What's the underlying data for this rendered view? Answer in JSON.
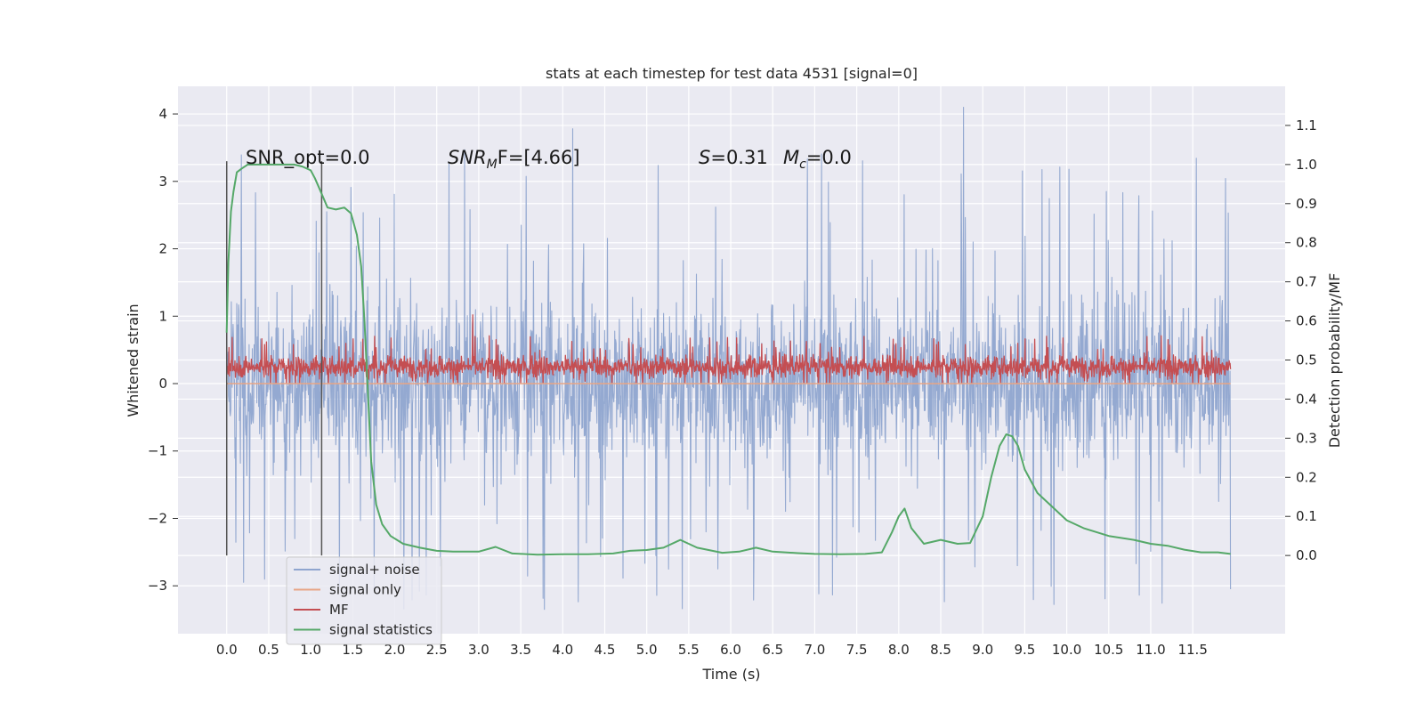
{
  "chart_data": {
    "type": "line",
    "title": "stats at each timestep for test data 4531 [signal=0]",
    "xlabel": "Time (s)",
    "ylabel": "Whitened strain",
    "y2label": "Detection probability/MF",
    "xlim": [
      -0.58,
      12.6
    ],
    "ylim": [
      -3.71,
      4.41
    ],
    "y2lim": [
      -0.2,
      1.2
    ],
    "x_ticks": [
      0.0,
      0.5,
      1.0,
      1.5,
      2.0,
      2.5,
      3.0,
      3.5,
      4.0,
      4.5,
      5.0,
      5.5,
      6.0,
      6.5,
      7.0,
      7.5,
      8.0,
      8.5,
      9.0,
      9.5,
      10.0,
      10.5,
      11.0,
      11.5
    ],
    "x_tick_labels": [
      "0.0",
      "0.5",
      "1.0",
      "1.5",
      "2.0",
      "2.5",
      "3.0",
      "3.5",
      "4.0",
      "4.5",
      "5.0",
      "5.5",
      "6.0",
      "6.5",
      "7.0",
      "7.5",
      "8.0",
      "8.5",
      "9.0",
      "9.5",
      "10.0",
      "10.5",
      "11.0",
      "11.5"
    ],
    "y_ticks": [
      4,
      3,
      2,
      1,
      0,
      -1,
      -2,
      -3
    ],
    "y_tick_labels": [
      "4",
      "3",
      "2",
      "1",
      "0",
      "−1",
      "−2",
      "−3"
    ],
    "y2_ticks": [
      1.1,
      1.0,
      0.9,
      0.8,
      0.7,
      0.6,
      0.5,
      0.4,
      0.3,
      0.2,
      0.1,
      0.0
    ],
    "y2_tick_labels": [
      "1.1",
      "1.0",
      "0.9",
      "0.8",
      "0.7",
      "0.6",
      "0.5",
      "0.4",
      "0.3",
      "0.2",
      "0.1",
      "0.0"
    ],
    "grid": true,
    "annotations": {
      "snr_opt": "SNR_opt=0.0",
      "snr_mf_main": "SNR",
      "snr_mf_sub": "M",
      "snr_mf_rest": "F=[4.66]",
      "s_var": "S",
      "s_rest": "=0.31",
      "mc_var": "M",
      "mc_sub": "c",
      "mc_rest": "=0.0"
    },
    "vlines": [
      {
        "x": 0.0,
        "y_range": [
          -2.55,
          3.3
        ]
      },
      {
        "x": 1.13,
        "y_range": [
          -2.55,
          3.3
        ]
      }
    ],
    "series": [
      {
        "name": "signal+ noise",
        "color": "#8fa5cf",
        "axis": "left",
        "style": "noise",
        "x_range": [
          0.0,
          11.95
        ],
        "envelope_typical": [
          -1.45,
          1.5
        ],
        "envelope_extreme": [
          -3.35,
          4.1
        ],
        "spikes": [
          [
            8.77,
            4.1
          ],
          [
            4.12,
            3.78
          ],
          [
            7.05,
            -3.12
          ],
          [
            3.78,
            -3.35
          ],
          [
            11.95,
            -3.05
          ],
          [
            0.45,
            -2.9
          ],
          [
            5.85,
            -2.75
          ],
          [
            2.83,
            3.47
          ]
        ]
      },
      {
        "name": "signal only",
        "color": "#e8a586",
        "axis": "left",
        "x": [
          0.0,
          11.95
        ],
        "y": [
          0.0,
          0.0
        ]
      },
      {
        "name": "MF",
        "color": "#c44e52",
        "axis": "left",
        "style": "noise",
        "x_range": [
          0.0,
          11.95
        ],
        "envelope_typical": [
          0.05,
          0.45
        ],
        "envelope_extreme": [
          0.0,
          1.02
        ],
        "spikes": [
          [
            2.93,
            1.02
          ]
        ]
      },
      {
        "name": "signal statistics",
        "color": "#55a868",
        "axis": "right",
        "x": [
          0.0,
          0.02,
          0.05,
          0.08,
          0.12,
          0.18,
          0.25,
          0.4,
          0.6,
          0.8,
          0.9,
          1.0,
          1.05,
          1.1,
          1.2,
          1.3,
          1.4,
          1.48,
          1.55,
          1.6,
          1.64,
          1.68,
          1.72,
          1.78,
          1.85,
          1.95,
          2.1,
          2.3,
          2.5,
          2.7,
          3.0,
          3.2,
          3.4,
          3.7,
          4.0,
          4.3,
          4.6,
          4.8,
          5.0,
          5.2,
          5.4,
          5.6,
          5.9,
          6.1,
          6.3,
          6.5,
          6.8,
          7.0,
          7.3,
          7.6,
          7.8,
          7.92,
          8.0,
          8.07,
          8.15,
          8.3,
          8.5,
          8.7,
          8.85,
          9.0,
          9.1,
          9.2,
          9.28,
          9.35,
          9.42,
          9.5,
          9.65,
          9.85,
          10.0,
          10.2,
          10.5,
          10.8,
          11.0,
          11.2,
          11.4,
          11.6,
          11.8,
          11.95
        ],
        "y": [
          0.57,
          0.75,
          0.88,
          0.93,
          0.98,
          0.99,
          1.0,
          1.0,
          1.0,
          1.0,
          0.995,
          0.985,
          0.965,
          0.94,
          0.89,
          0.885,
          0.89,
          0.875,
          0.82,
          0.74,
          0.6,
          0.42,
          0.24,
          0.13,
          0.08,
          0.05,
          0.03,
          0.02,
          0.012,
          0.01,
          0.01,
          0.022,
          0.005,
          0.002,
          0.003,
          0.003,
          0.005,
          0.012,
          0.014,
          0.02,
          0.04,
          0.02,
          0.007,
          0.01,
          0.02,
          0.01,
          0.006,
          0.004,
          0.003,
          0.004,
          0.008,
          0.06,
          0.1,
          0.12,
          0.07,
          0.03,
          0.04,
          0.03,
          0.032,
          0.1,
          0.2,
          0.28,
          0.31,
          0.305,
          0.28,
          0.22,
          0.16,
          0.12,
          0.09,
          0.07,
          0.05,
          0.04,
          0.03,
          0.025,
          0.015,
          0.008,
          0.008,
          0.004
        ]
      }
    ],
    "legend": {
      "placement": "lower-left",
      "entries": [
        "signal+ noise",
        "signal only",
        "MF",
        "signal statistics"
      ]
    },
    "colors": {
      "plot_bg": "#eaeaf2",
      "grid": "#ffffff",
      "text": "#262626",
      "vline": "#555555"
    }
  }
}
